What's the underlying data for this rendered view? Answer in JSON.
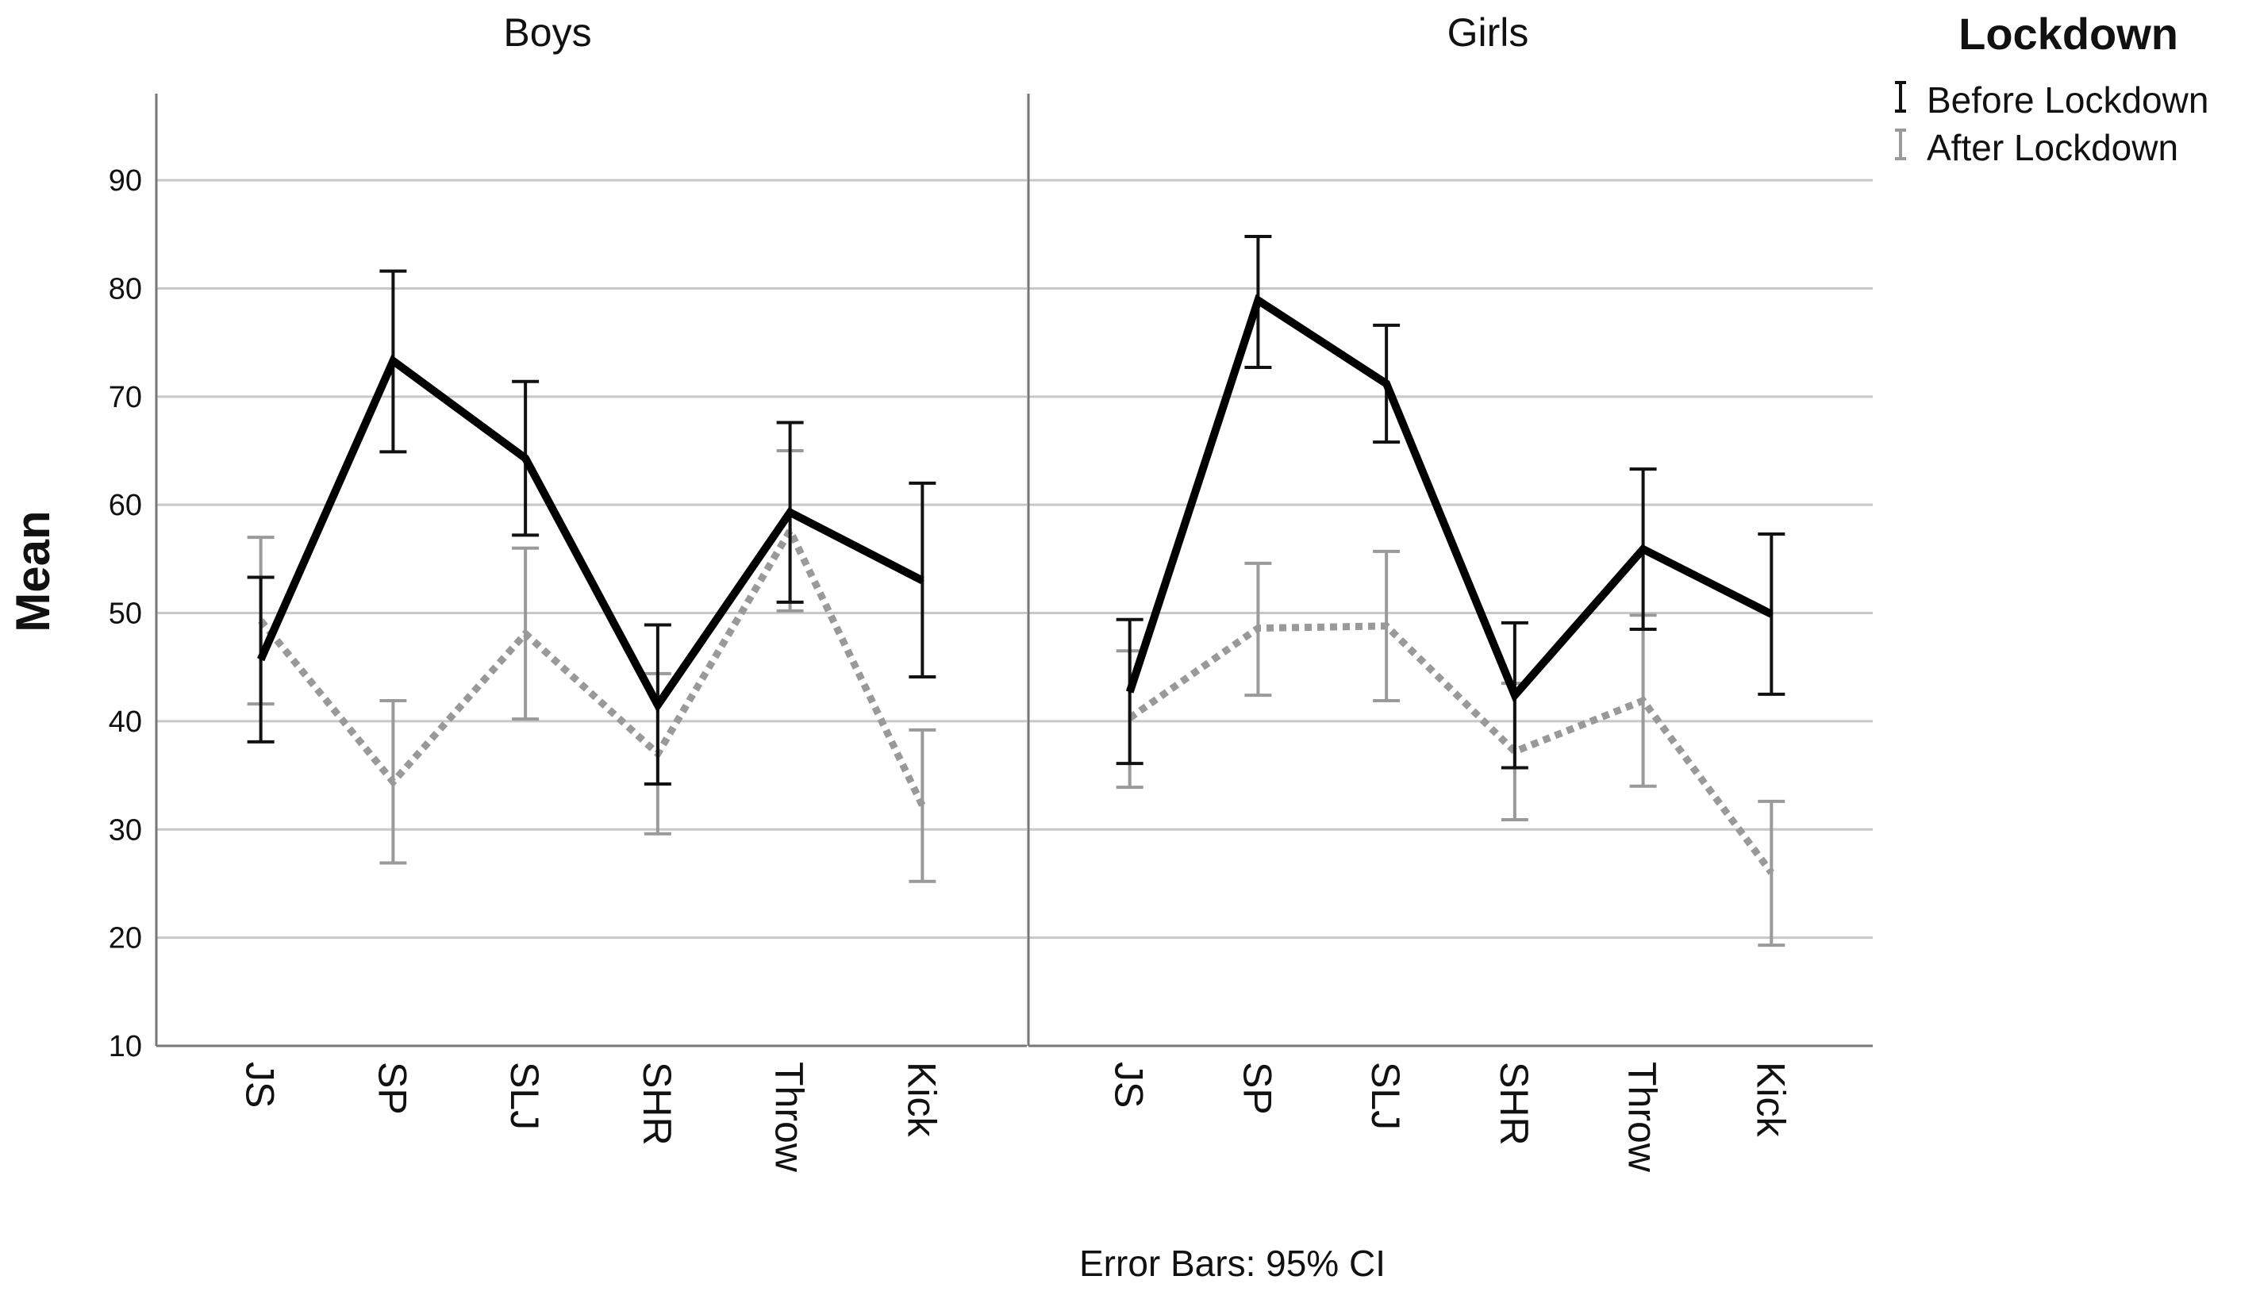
{
  "chart_data": {
    "type": "line",
    "ylabel": "Mean",
    "ylim": [
      10,
      98
    ],
    "yticks": [
      10,
      20,
      30,
      40,
      50,
      60,
      70,
      80,
      90
    ],
    "grid": true,
    "categories": [
      "JS",
      "SP",
      "SLJ",
      "SHR",
      "Throw",
      "Kick"
    ],
    "legend": {
      "title": "Lockdown",
      "position": "top-right",
      "entries": [
        {
          "name": "Before Lockdown",
          "color": "#000000",
          "style": "solid"
        },
        {
          "name": "After Lockdown",
          "color": "#999999",
          "style": "dotted"
        }
      ]
    },
    "footnote": "Error Bars: 95% CI",
    "panels": [
      {
        "title": "Boys",
        "series": [
          {
            "name": "Before Lockdown",
            "values": [
              45.7,
              73.3,
              64.3,
              41.5,
              59.3,
              53.0
            ],
            "ci_low": [
              38.1,
              64.9,
              57.2,
              34.2,
              51.0,
              44.1
            ],
            "ci_high": [
              53.3,
              81.6,
              71.4,
              48.9,
              67.6,
              62.0
            ]
          },
          {
            "name": "After Lockdown",
            "values": [
              49.3,
              34.4,
              48.1,
              37.0,
              57.6,
              32.2
            ],
            "ci_low": [
              41.6,
              26.9,
              40.2,
              29.6,
              50.2,
              25.2
            ],
            "ci_high": [
              57.0,
              41.9,
              56.0,
              44.4,
              65.0,
              39.2
            ]
          }
        ]
      },
      {
        "title": "Girls",
        "series": [
          {
            "name": "Before Lockdown",
            "values": [
              42.7,
              78.9,
              71.2,
              42.4,
              55.9,
              49.9
            ],
            "ci_low": [
              36.1,
              72.7,
              65.8,
              35.7,
              48.5,
              42.5
            ],
            "ci_high": [
              49.4,
              84.8,
              76.6,
              49.1,
              63.3,
              57.3
            ]
          },
          {
            "name": "After Lockdown",
            "values": [
              40.3,
              48.6,
              48.8,
              37.2,
              41.9,
              26.0
            ],
            "ci_low": [
              33.9,
              42.4,
              41.9,
              30.9,
              34.0,
              19.3
            ],
            "ci_high": [
              46.5,
              54.6,
              55.7,
              43.5,
              49.8,
              32.6
            ]
          }
        ]
      }
    ]
  }
}
